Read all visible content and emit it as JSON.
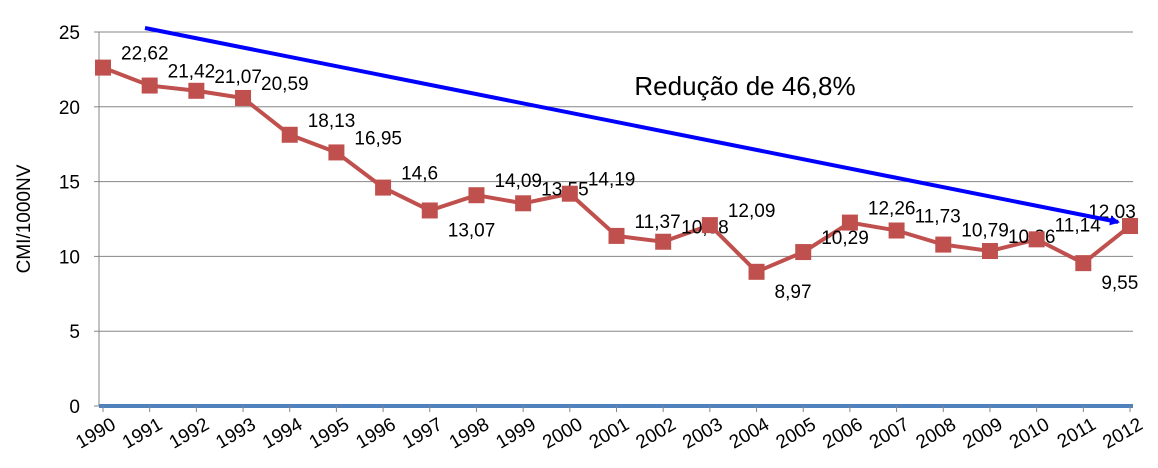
{
  "chart_data": {
    "type": "line",
    "y_label": "CMI/1000NV",
    "annotation": "Redução de 46,8%",
    "categories": [
      "1990",
      "1991",
      "1992",
      "1993",
      "1994",
      "1995",
      "1996",
      "1997",
      "1998",
      "1999",
      "2000",
      "2001",
      "2002",
      "2003",
      "2004",
      "2005",
      "2006",
      "2007",
      "2008",
      "2009",
      "2010",
      "2011",
      "2012"
    ],
    "series": [
      {
        "color": "#c0504d",
        "values": [
          22.62,
          21.42,
          21.07,
          20.59,
          18.13,
          16.95,
          14.6,
          13.07,
          14.09,
          13.55,
          14.19,
          11.37,
          10.98,
          12.09,
          8.97,
          10.29,
          12.26,
          11.73,
          10.79,
          10.36,
          11.14,
          9.55,
          12.03
        ],
        "value_labels": [
          "22,62",
          "21,42",
          "21,07",
          "20,59",
          "18,13",
          "16,95",
          "14,6",
          "13,07",
          "14,09",
          "13,55",
          "14,19",
          "11,37",
          "10,98",
          "12,09",
          "8,97",
          "10,29",
          "12,26",
          "11,73",
          "10,79",
          "10,36",
          "11,14",
          "9,55",
          "12,03"
        ]
      }
    ],
    "ylim": [
      0,
      25
    ],
    "yticks": [
      0,
      5,
      10,
      15,
      20,
      25
    ],
    "grid": true
  }
}
